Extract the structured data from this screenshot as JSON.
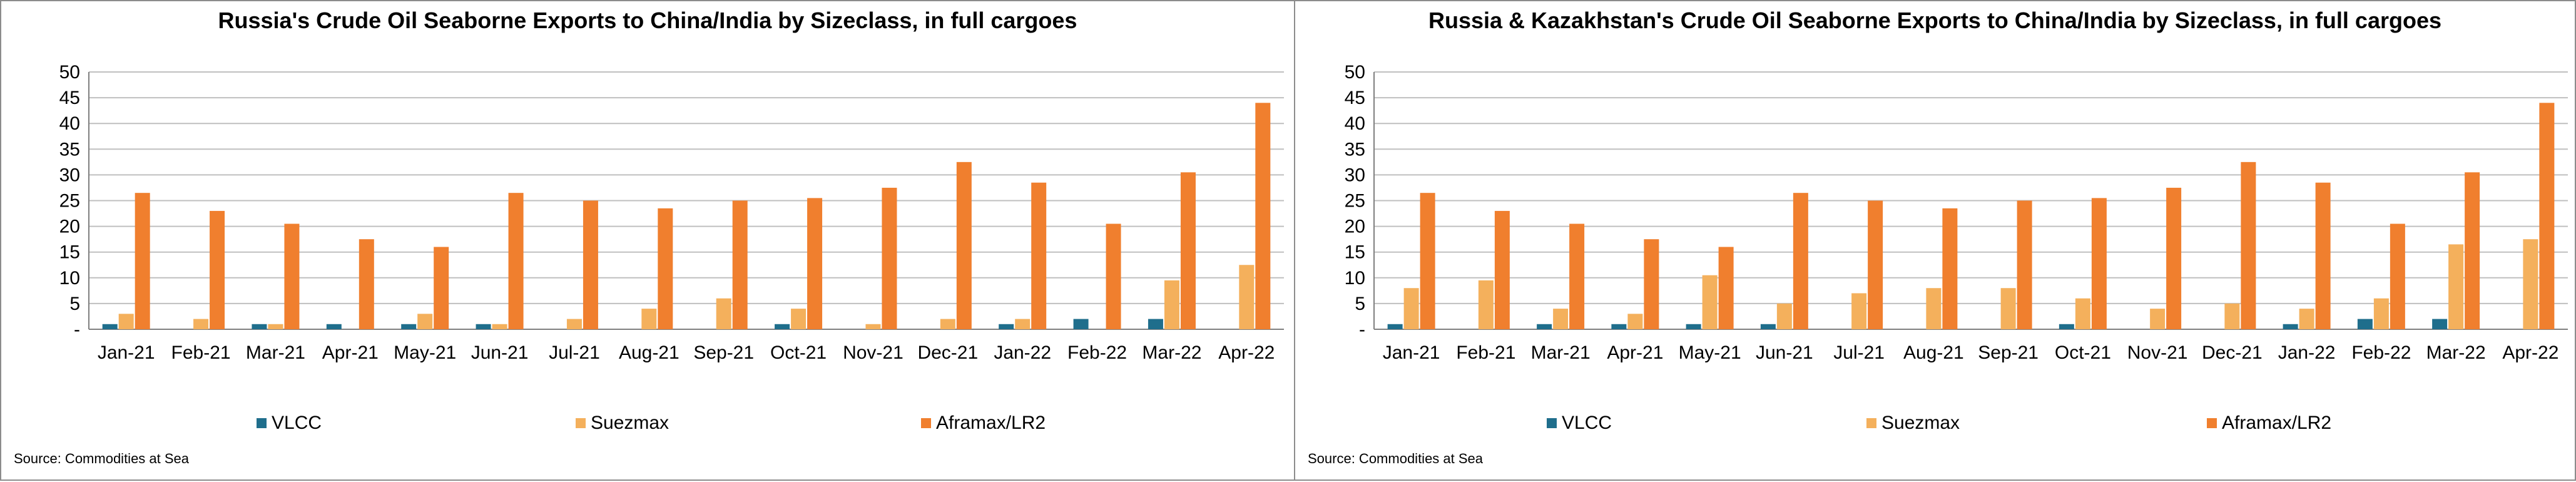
{
  "chart_data": [
    {
      "type": "bar",
      "title": "Russia's Crude Oil Seaborne Exports to China/India by Sizeclass, in full cargoes",
      "categories": [
        "Jan-21",
        "Feb-21",
        "Mar-21",
        "Apr-21",
        "May-21",
        "Jun-21",
        "Jul-21",
        "Aug-21",
        "Sep-21",
        "Oct-21",
        "Nov-21",
        "Dec-21",
        "Jan-22",
        "Feb-22",
        "Mar-22",
        "Apr-22"
      ],
      "series": [
        {
          "name": "VLCC",
          "color": "#1f6e8c",
          "values": [
            1,
            0,
            1,
            1,
            1,
            1,
            0,
            0,
            0,
            1,
            0,
            0,
            1,
            2,
            2,
            0
          ]
        },
        {
          "name": "Suezmax",
          "color": "#f4b05c",
          "values": [
            3,
            2,
            1,
            0,
            3,
            1,
            2,
            4,
            6,
            4,
            1,
            2,
            2,
            0,
            9.5,
            12.5
          ]
        },
        {
          "name": "Aframax/LR2",
          "color": "#f07f2e",
          "values": [
            26.5,
            23,
            20.5,
            17.5,
            16,
            26.5,
            25,
            23.5,
            25,
            25.5,
            27.5,
            32.5,
            28.5,
            20.5,
            30.5,
            44
          ]
        }
      ],
      "y_ticks": [
        "-",
        "5",
        "10",
        "15",
        "20",
        "25",
        "30",
        "35",
        "40",
        "45",
        "50"
      ],
      "ylim": [
        0,
        50
      ],
      "grid": true,
      "legend": "bottom",
      "source": "Source: Commodities at Sea"
    },
    {
      "type": "bar",
      "title": "Russia & Kazakhstan's Crude Oil Seaborne Exports to China/India by Sizeclass, in full cargoes",
      "categories": [
        "Jan-21",
        "Feb-21",
        "Mar-21",
        "Apr-21",
        "May-21",
        "Jun-21",
        "Jul-21",
        "Aug-21",
        "Sep-21",
        "Oct-21",
        "Nov-21",
        "Dec-21",
        "Jan-22",
        "Feb-22",
        "Mar-22",
        "Apr-22"
      ],
      "series": [
        {
          "name": "VLCC",
          "color": "#1f6e8c",
          "values": [
            1,
            0,
            1,
            1,
            1,
            1,
            0,
            0,
            0,
            1,
            0,
            0,
            1,
            2,
            2,
            0
          ]
        },
        {
          "name": "Suezmax",
          "color": "#f4b05c",
          "values": [
            8,
            9.5,
            4,
            3,
            10.5,
            5,
            7,
            8,
            8,
            6,
            4,
            5,
            4,
            6,
            16.5,
            17.5
          ]
        },
        {
          "name": "Aframax/LR2",
          "color": "#f07f2e",
          "values": [
            26.5,
            23,
            20.5,
            17.5,
            16,
            26.5,
            25,
            23.5,
            25,
            25.5,
            27.5,
            32.5,
            28.5,
            20.5,
            30.5,
            44
          ]
        }
      ],
      "y_ticks": [
        "-",
        "5",
        "10",
        "15",
        "20",
        "25",
        "30",
        "35",
        "40",
        "45",
        "50"
      ],
      "ylim": [
        0,
        50
      ],
      "grid": true,
      "legend": "bottom",
      "source": "Source: Commodities at Sea"
    }
  ]
}
